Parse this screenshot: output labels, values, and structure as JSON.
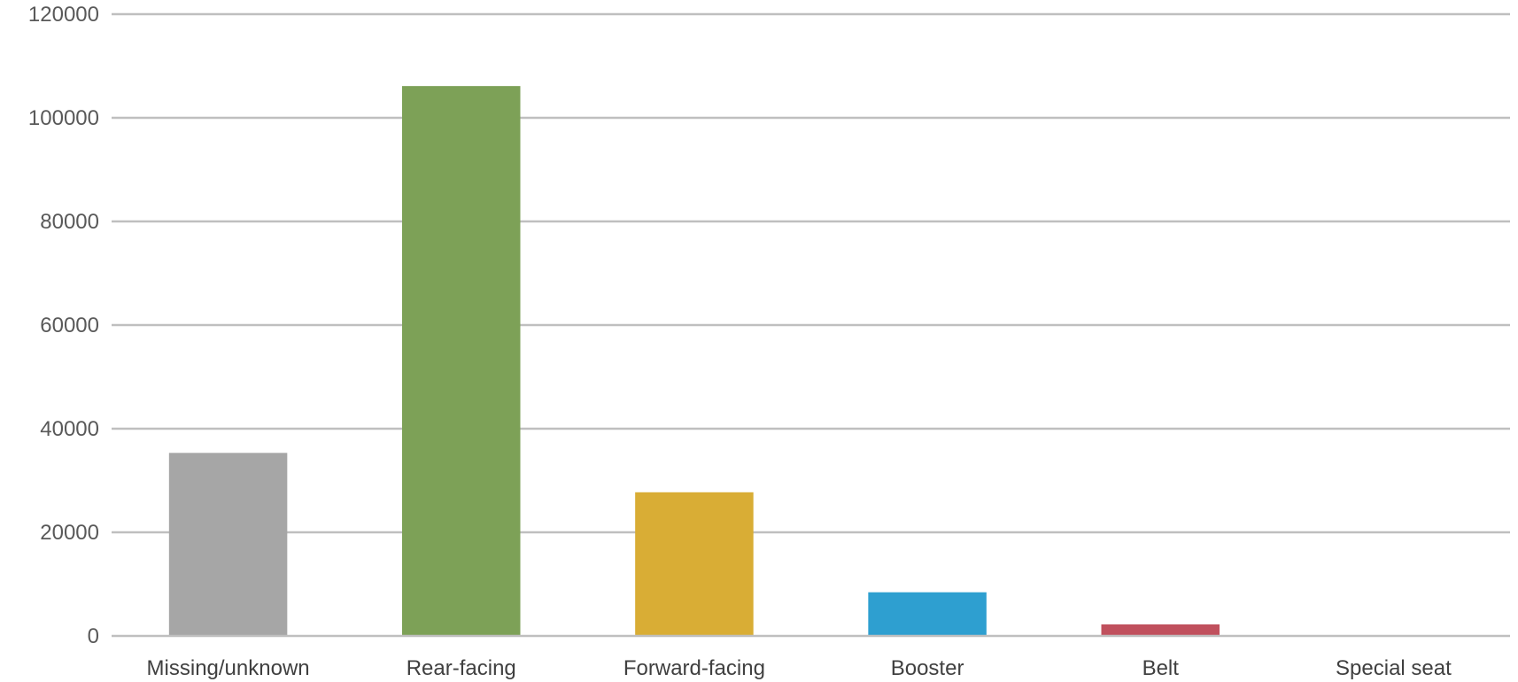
{
  "chart_data": {
    "type": "bar",
    "title": "",
    "xlabel": "",
    "ylabel": "",
    "categories": [
      "Missing/unknown",
      "Rear-facing",
      "Forward-facing",
      "Booster",
      "Belt",
      "Special seat"
    ],
    "values": [
      35200,
      106000,
      27600,
      8300,
      2100,
      0
    ],
    "colors": [
      "#a6a6a6",
      "#7da157",
      "#d9ad35",
      "#2e9fd0",
      "#c0505d",
      "#a6a6a6"
    ],
    "ylim": [
      0,
      120000
    ],
    "yticks": [
      0,
      20000,
      40000,
      60000,
      80000,
      100000,
      120000
    ],
    "ytick_labels": [
      "0",
      "20000",
      "40000",
      "60000",
      "80000",
      "100000",
      "120000"
    ],
    "grid": true,
    "legend": "none"
  }
}
